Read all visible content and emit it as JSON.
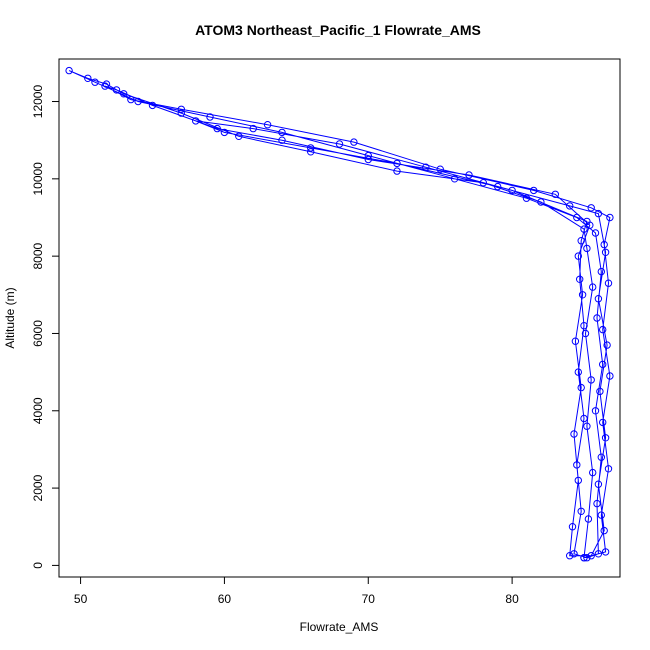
{
  "chart_data": {
    "type": "line",
    "title": "ATOM3 Northeast_Pacific_1 Flowrate_AMS",
    "xlabel": "Flowrate_AMS",
    "ylabel": "Altitude (m)",
    "xlim": [
      48.5,
      87.5
    ],
    "ylim": [
      -300,
      13100
    ],
    "x_ticks": [
      50,
      60,
      70,
      80
    ],
    "y_ticks": [
      0,
      2000,
      4000,
      6000,
      8000,
      10000,
      12000
    ],
    "grid": false,
    "series": [
      {
        "color": "#0000ff",
        "marker": "open-circle",
        "points": [
          [
            85.0,
            200
          ],
          [
            85.3,
            1200
          ],
          [
            85.6,
            2400
          ],
          [
            85.2,
            3600
          ],
          [
            85.5,
            4800
          ],
          [
            85.1,
            6000
          ],
          [
            85.6,
            7200
          ],
          [
            85.2,
            8200
          ],
          [
            85.0,
            8700
          ],
          [
            82.0,
            9400
          ],
          [
            78.0,
            9900
          ],
          [
            72.0,
            10200
          ],
          [
            66.0,
            10700
          ],
          [
            61.0,
            11100
          ],
          [
            57.0,
            11700
          ],
          [
            53.0,
            12200
          ],
          [
            51.8,
            12450
          ],
          [
            50.5,
            12600
          ],
          [
            49.2,
            12800
          ],
          [
            51.0,
            12500
          ],
          [
            54.0,
            12000
          ],
          [
            59.0,
            11600
          ],
          [
            64.0,
            11200
          ],
          [
            70.0,
            10600
          ],
          [
            76.0,
            10000
          ],
          [
            81.0,
            9500
          ],
          [
            84.5,
            9000
          ],
          [
            85.8,
            8600
          ],
          [
            86.2,
            7600
          ],
          [
            85.9,
            6400
          ],
          [
            86.3,
            5200
          ],
          [
            85.8,
            4000
          ],
          [
            86.2,
            2800
          ],
          [
            85.9,
            1600
          ],
          [
            86.0,
            300
          ],
          [
            85.2,
            200
          ],
          [
            84.3,
            300
          ],
          [
            84.8,
            1400
          ],
          [
            84.5,
            2600
          ],
          [
            85.0,
            3800
          ],
          [
            84.6,
            5000
          ],
          [
            85.0,
            6200
          ],
          [
            84.7,
            7400
          ],
          [
            84.8,
            8400
          ],
          [
            85.2,
            8900
          ],
          [
            80.0,
            9700
          ],
          [
            74.0,
            10300
          ],
          [
            68.0,
            10900
          ],
          [
            62.0,
            11300
          ],
          [
            58.0,
            11500
          ],
          [
            60.0,
            11200
          ],
          [
            66.0,
            10800
          ],
          [
            72.0,
            10400
          ],
          [
            79.0,
            9800
          ],
          [
            84.0,
            9300
          ],
          [
            86.0,
            9100
          ],
          [
            86.5,
            8100
          ],
          [
            86.0,
            6900
          ],
          [
            86.6,
            5700
          ],
          [
            86.1,
            4500
          ],
          [
            86.5,
            3300
          ],
          [
            86.0,
            2100
          ],
          [
            86.4,
            900
          ],
          [
            85.5,
            250
          ],
          [
            84.0,
            250
          ],
          [
            84.2,
            1000
          ],
          [
            84.6,
            2200
          ],
          [
            84.3,
            3400
          ],
          [
            84.8,
            4600
          ],
          [
            84.4,
            5800
          ],
          [
            84.9,
            7000
          ],
          [
            84.6,
            8000
          ],
          [
            85.4,
            8800
          ],
          [
            83.0,
            9600
          ],
          [
            77.0,
            10100
          ],
          [
            70.0,
            10500
          ],
          [
            64.0,
            11000
          ],
          [
            59.5,
            11300
          ],
          [
            55.0,
            11900
          ],
          [
            52.5,
            12300
          ],
          [
            51.7,
            12400
          ],
          [
            53.5,
            12050
          ],
          [
            57.0,
            11800
          ],
          [
            63.0,
            11400
          ],
          [
            69.0,
            10950
          ],
          [
            75.0,
            10250
          ],
          [
            81.5,
            9700
          ],
          [
            85.5,
            9250
          ],
          [
            86.8,
            9000
          ],
          [
            86.4,
            8300
          ],
          [
            86.7,
            7300
          ],
          [
            86.3,
            6100
          ],
          [
            86.8,
            4900
          ],
          [
            86.3,
            3700
          ],
          [
            86.7,
            2500
          ],
          [
            86.2,
            1300
          ],
          [
            86.5,
            350
          ],
          [
            85.0,
            200
          ]
        ]
      }
    ]
  }
}
